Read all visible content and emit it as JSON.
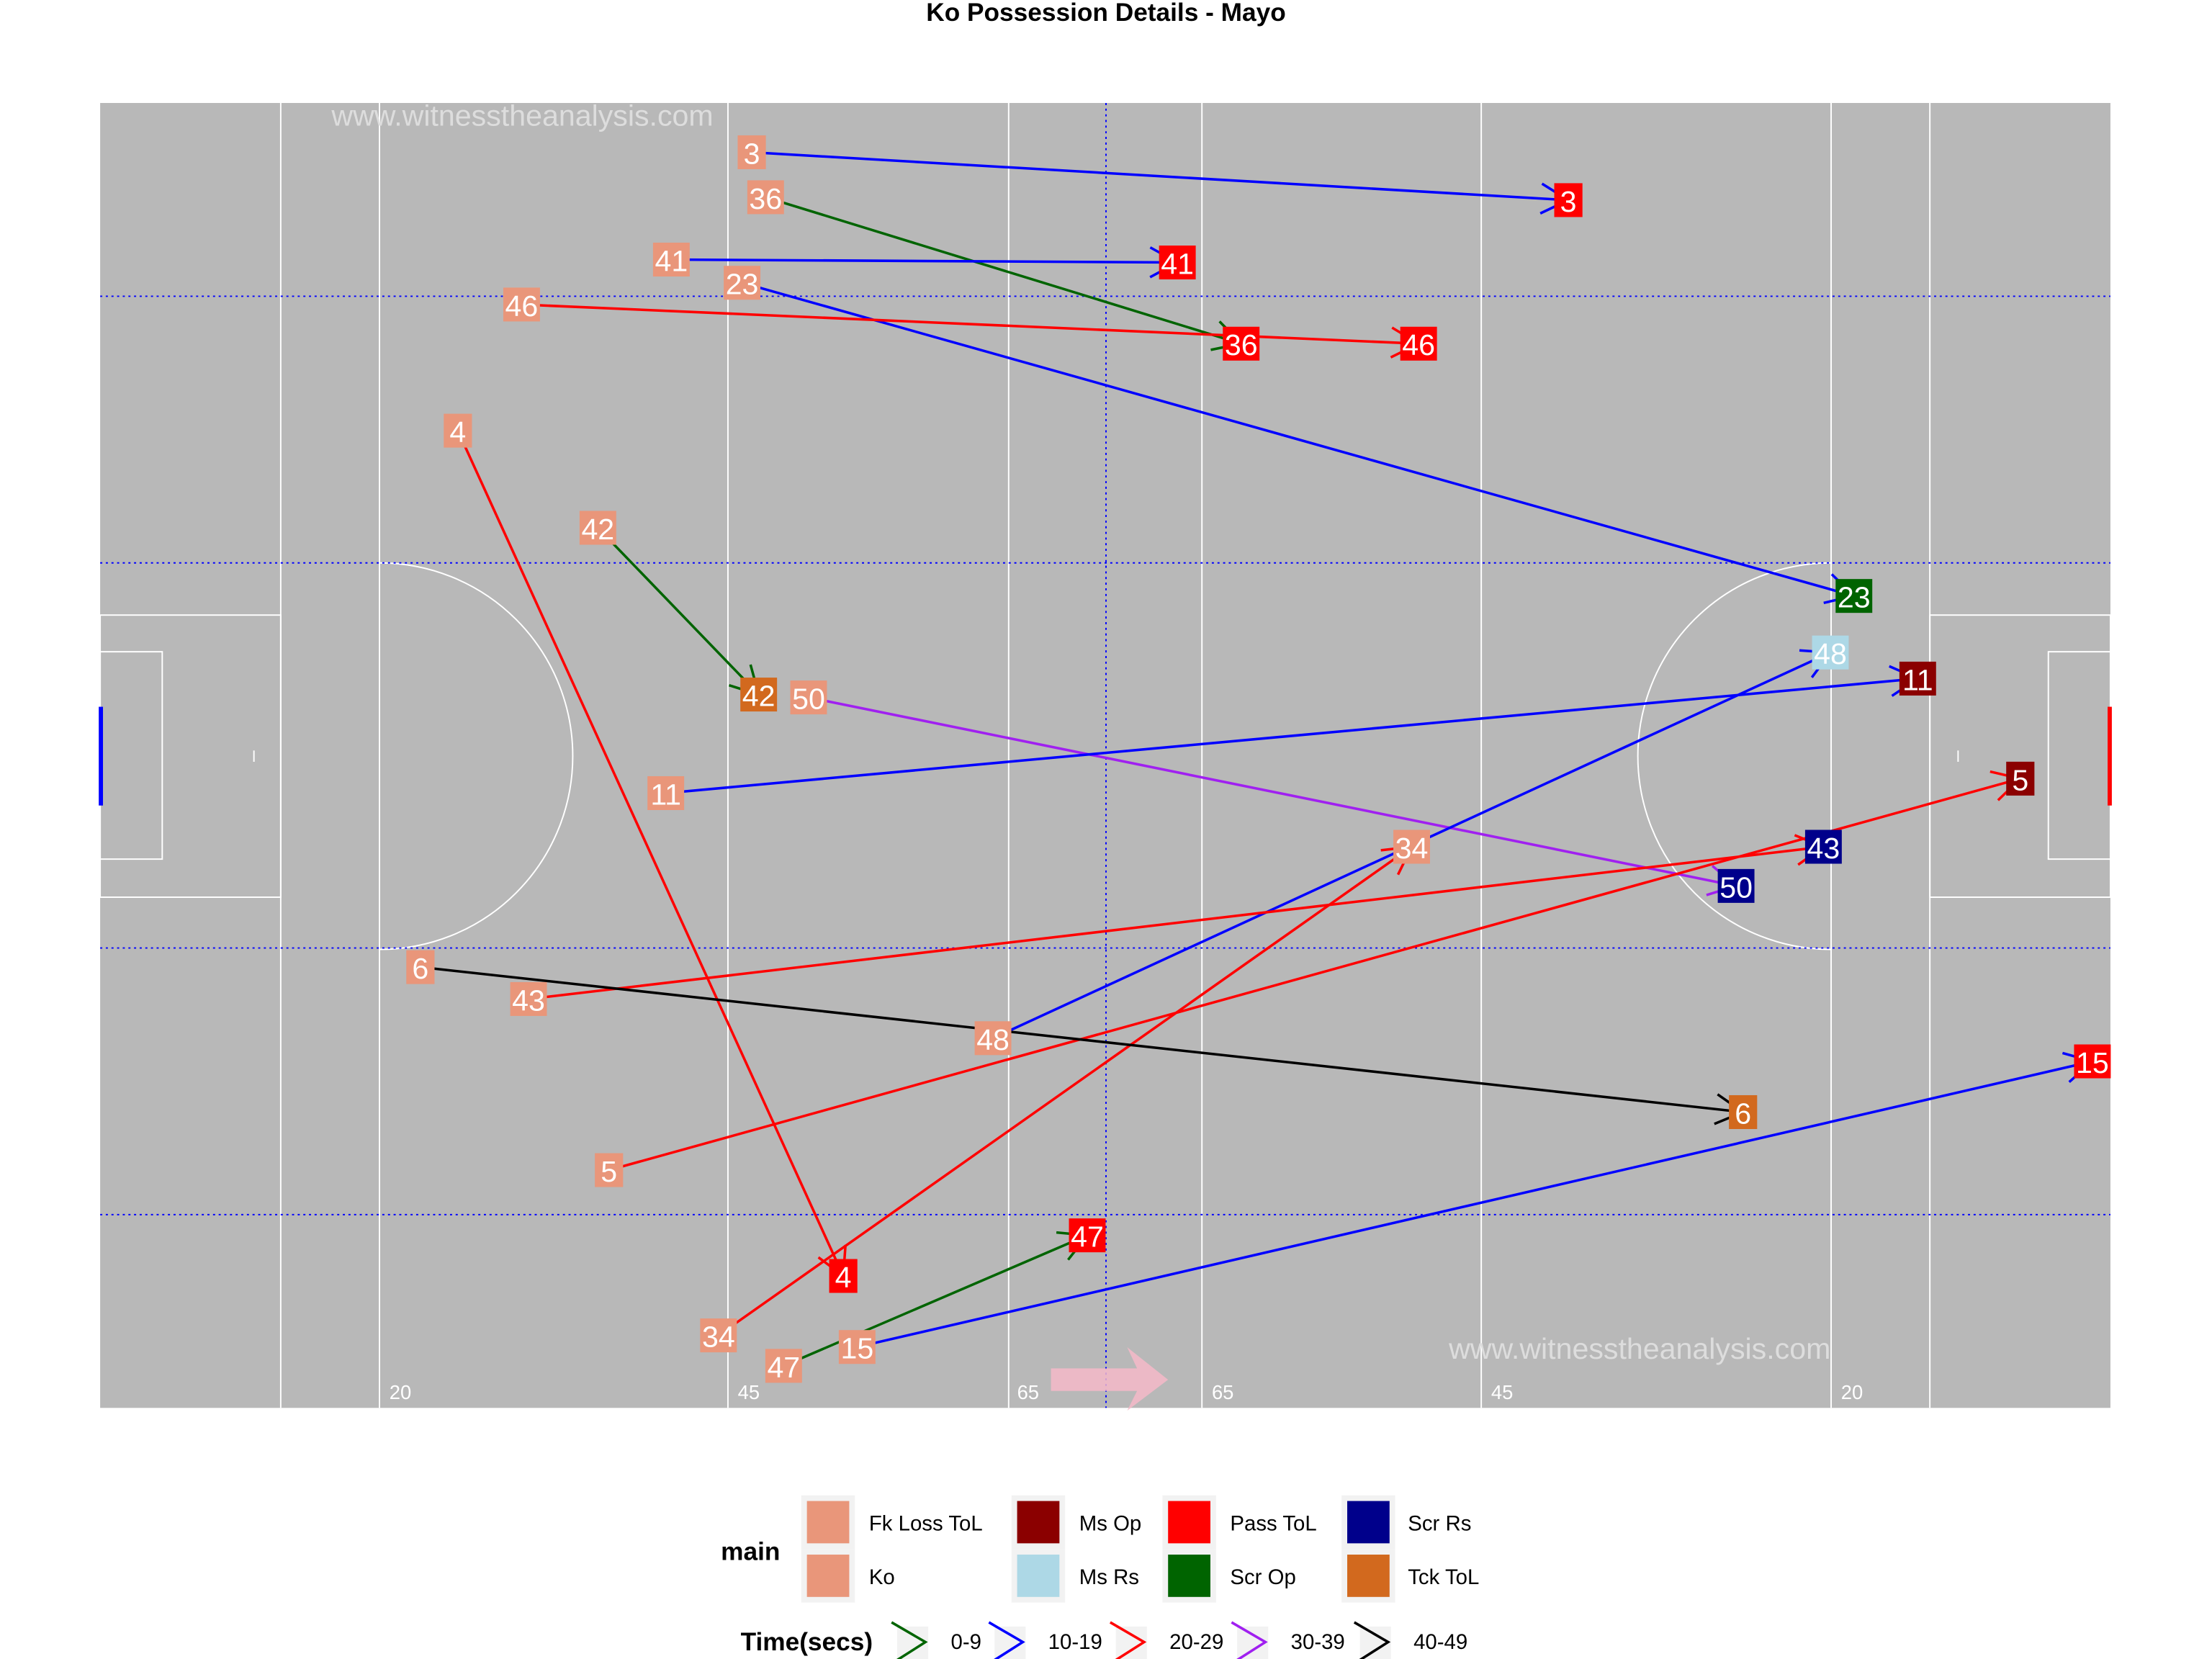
{
  "chart_data": {
    "type": "scatter",
    "title": "Ko Possession Details - Mayo",
    "watermark": "www.witnesstheanalysis.com",
    "xlim": [
      0,
      145
    ],
    "ylim": [
      0,
      90
    ],
    "yard_labels": [
      "20",
      "45",
      "65",
      "65",
      "45",
      "20"
    ],
    "legend_main_title": "main",
    "legend_time_title": "Time(secs)",
    "main_categories": [
      {
        "name": "Fk Loss ToL",
        "color": "#E9967A"
      },
      {
        "name": "Ko",
        "color": "#E9967A"
      },
      {
        "name": "Ms Op",
        "color": "#8B0000"
      },
      {
        "name": "Ms Rs",
        "color": "#ADD8E6"
      },
      {
        "name": "Pass ToL",
        "color": "#FF0000"
      },
      {
        "name": "Scr Op",
        "color": "#006400"
      },
      {
        "name": "Scr Rs",
        "color": "#00008B"
      },
      {
        "name": "Tck ToL",
        "color": "#D2691E"
      }
    ],
    "time_bins": [
      {
        "name": "0-9",
        "color": "#006400"
      },
      {
        "name": "10-19",
        "color": "#0000FF"
      },
      {
        "name": "20-29",
        "color": "#FF0000"
      },
      {
        "name": "30-39",
        "color": "#A020F0"
      },
      {
        "name": "40-49",
        "color": "#000000"
      }
    ],
    "events": [
      {
        "id": "3",
        "x0": 47.0,
        "y0": 3.4,
        "x1": 105.9,
        "y1": 6.7,
        "outcome": "Pass ToL",
        "time": "10-19"
      },
      {
        "id": "36",
        "x0": 48.0,
        "y0": 6.5,
        "x1": 82.3,
        "y1": 16.6,
        "outcome": "Pass ToL",
        "time": "0-9"
      },
      {
        "id": "41",
        "x0": 41.2,
        "y0": 10.8,
        "x1": 77.7,
        "y1": 11.0,
        "outcome": "Pass ToL",
        "time": "10-19"
      },
      {
        "id": "23",
        "x0": 46.3,
        "y0": 12.4,
        "x1": 126.5,
        "y1": 34.0,
        "outcome": "Scr Op",
        "time": "10-19"
      },
      {
        "id": "46",
        "x0": 30.4,
        "y0": 13.9,
        "x1": 95.1,
        "y1": 16.6,
        "outcome": "Pass ToL",
        "time": "20-29"
      },
      {
        "id": "4",
        "x0": 25.8,
        "y0": 22.6,
        "x1": 53.6,
        "y1": 80.9,
        "outcome": "Pass ToL",
        "time": "20-29"
      },
      {
        "id": "42",
        "x0": 35.9,
        "y0": 29.3,
        "x1": 47.5,
        "y1": 40.8,
        "outcome": "Tck ToL",
        "time": "0-9"
      },
      {
        "id": "50",
        "x0": 51.1,
        "y0": 41.0,
        "x1": 118.0,
        "y1": 54.0,
        "outcome": "Scr Rs",
        "time": "30-39"
      },
      {
        "id": "11",
        "x0": 40.8,
        "y0": 47.6,
        "x1": 131.1,
        "y1": 39.7,
        "outcome": "Ms Op",
        "time": "10-19"
      },
      {
        "id": "34",
        "x0": 44.6,
        "y0": 85.0,
        "x1": 94.6,
        "y1": 51.3,
        "outcome": "Fk Loss ToL",
        "time": "20-29"
      },
      {
        "id": "48",
        "x0": 64.4,
        "y0": 64.5,
        "x1": 124.8,
        "y1": 37.9,
        "outcome": "Ms Rs",
        "time": "10-19"
      },
      {
        "id": "43",
        "x0": 30.9,
        "y0": 61.8,
        "x1": 124.3,
        "y1": 51.3,
        "outcome": "Scr Rs",
        "time": "20-29"
      },
      {
        "id": "5",
        "x0": 36.7,
        "y0": 73.6,
        "x1": 138.5,
        "y1": 46.6,
        "outcome": "Ms Op",
        "time": "20-29"
      },
      {
        "id": "6",
        "x0": 23.1,
        "y0": 59.6,
        "x1": 118.5,
        "y1": 69.6,
        "outcome": "Tck ToL",
        "time": "40-49"
      },
      {
        "id": "15",
        "x0": 54.6,
        "y0": 85.8,
        "x1": 143.7,
        "y1": 66.1,
        "outcome": "Pass ToL",
        "time": "10-19"
      },
      {
        "id": "47",
        "x0": 49.3,
        "y0": 87.1,
        "x1": 71.2,
        "y1": 78.1,
        "outcome": "Pass ToL",
        "time": "0-9"
      }
    ],
    "start_color": "#E9967A"
  }
}
